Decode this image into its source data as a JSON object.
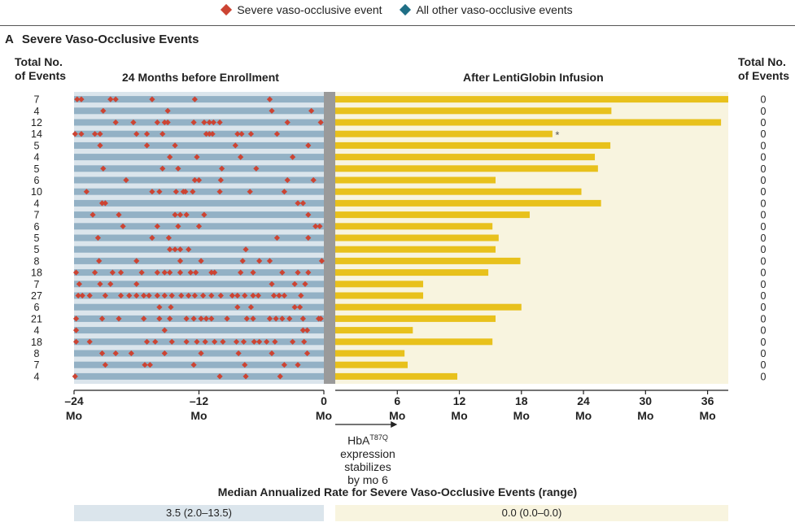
{
  "legend": {
    "severe_label": "Severe vaso-occlusive event",
    "other_label": "All other vaso-occlusive events",
    "severe_color": "#cc4433",
    "other_color": "#1f6f86"
  },
  "panel": {
    "letter": "A",
    "title": "Severe Vaso-Occlusive Events"
  },
  "headers": {
    "left_total_line1": "Total No.",
    "left_total_line2": "of Events",
    "before_label": "24 Months before Enrollment",
    "after_label": "After LentiGlobin Infusion",
    "right_total_line1": "Total No.",
    "right_total_line2": "of Events"
  },
  "colors": {
    "before_row": "#93b1c5",
    "before_bg": "#dbe5ec",
    "after_bar": "#e8c11c",
    "after_bg": "#f8f4df",
    "divider": "#9a9a9a"
  },
  "note": {
    "line1": "HbA",
    "sup": "T87Q",
    "line2": "expression",
    "line3": "stabilizes",
    "line4": "by mo 6"
  },
  "median": {
    "title": "Median Annualized Rate for Severe Vaso-Occlusive Events (range)",
    "before": "3.5 (2.0–13.5)",
    "after": "0.0 (0.0–0.0)"
  },
  "chart_data": {
    "type": "event_timeline",
    "before_axis": {
      "range": [
        -24,
        0
      ],
      "ticks": [
        "–24",
        "–12",
        "0"
      ],
      "tick_values": [
        -24,
        -12,
        0
      ],
      "unit": "Mo"
    },
    "after_axis": {
      "range": [
        0,
        38
      ],
      "ticks": [
        "0",
        "6",
        "12",
        "18",
        "24",
        "30",
        "36"
      ],
      "tick_values": [
        0,
        6,
        12,
        18,
        24,
        30,
        36
      ],
      "unit": "Mo"
    },
    "star_label": "*",
    "patients": [
      {
        "before_total": "7",
        "after_total": "0",
        "followup_months": 38.0,
        "events": [
          -23.7,
          -23.3,
          -20.5,
          -20.0,
          -16.5,
          -12.4,
          -5.2
        ]
      },
      {
        "before_total": "4",
        "after_total": "0",
        "followup_months": 26.7,
        "events": [
          -21.2,
          -15.0,
          -5.0,
          -1.2
        ]
      },
      {
        "before_total": "12",
        "after_total": "0",
        "followup_months": 37.3,
        "events": [
          -20.0,
          -18.3,
          -16.0,
          -15.3,
          -15.0,
          -12.5,
          -11.5,
          -11.0,
          -10.6,
          -10.0,
          -3.5,
          -0.3
        ]
      },
      {
        "before_total": "14",
        "after_total": "0",
        "followup_months": 21.0,
        "star": true,
        "events": [
          -23.9,
          -23.3,
          -22.0,
          -21.5,
          -18.0,
          -17.0,
          -15.5,
          -11.3,
          -11.0,
          -10.7,
          -8.3,
          -7.9,
          -7.0,
          -4.5
        ]
      },
      {
        "before_total": "5",
        "after_total": "0",
        "followup_months": 26.6,
        "events": [
          -21.5,
          -17.0,
          -14.3,
          -8.5,
          -1.5
        ]
      },
      {
        "before_total": "4",
        "after_total": "0",
        "followup_months": 25.1,
        "events": [
          -14.8,
          -12.2,
          -8.0,
          -3.0
        ]
      },
      {
        "before_total": "5",
        "after_total": "0",
        "followup_months": 25.4,
        "events": [
          -21.2,
          -15.5,
          -14.0,
          -9.8,
          -6.5
        ]
      },
      {
        "before_total": "6",
        "after_total": "0",
        "followup_months": 15.5,
        "events": [
          -19.0,
          -12.4,
          -12.0,
          -9.9,
          -3.5,
          -1.0
        ]
      },
      {
        "before_total": "10",
        "after_total": "0",
        "followup_months": 23.8,
        "events": [
          -22.8,
          -16.5,
          -15.8,
          -14.2,
          -13.5,
          -13.3,
          -12.6,
          -10.0,
          -7.1,
          -3.8
        ]
      },
      {
        "before_total": "4",
        "after_total": "0",
        "followup_months": 25.7,
        "events": [
          -21.3,
          -21.0,
          -2.5,
          -2.0
        ]
      },
      {
        "before_total": "7",
        "after_total": "0",
        "followup_months": 18.8,
        "events": [
          -22.2,
          -19.7,
          -14.3,
          -13.8,
          -13.2,
          -11.5,
          -1.5
        ]
      },
      {
        "before_total": "6",
        "after_total": "0",
        "followup_months": 15.2,
        "events": [
          -19.3,
          -16.0,
          -14.0,
          -12.0,
          -0.8,
          -0.4
        ]
      },
      {
        "before_total": "5",
        "after_total": "0",
        "followup_months": 15.8,
        "events": [
          -21.7,
          -16.5,
          -14.9,
          -4.5,
          -1.5
        ]
      },
      {
        "before_total": "5",
        "after_total": "0",
        "followup_months": 15.5,
        "events": [
          -14.8,
          -14.3,
          -13.8,
          -13.0,
          -7.5
        ]
      },
      {
        "before_total": "8",
        "after_total": "0",
        "followup_months": 17.9,
        "events": [
          -21.6,
          -18.0,
          -13.8,
          -11.8,
          -7.8,
          -6.2,
          -5.2,
          -0.2
        ]
      },
      {
        "before_total": "18",
        "after_total": "0",
        "followup_months": 14.8,
        "events": [
          -23.8,
          -22.0,
          -20.3,
          -19.5,
          -17.5,
          -16.0,
          -15.3,
          -14.8,
          -13.8,
          -12.8,
          -12.3,
          -10.8,
          -10.5,
          -8.0,
          -6.8,
          -4.0,
          -2.5,
          -1.5
        ]
      },
      {
        "before_total": "7",
        "after_total": "0",
        "followup_months": 8.5,
        "events": [
          -23.5,
          -21.5,
          -20.5,
          -18.0,
          -5.0,
          -2.8,
          -1.8
        ]
      },
      {
        "before_total": "27",
        "after_total": "0",
        "followup_months": 8.5,
        "events": [
          -23.6,
          -23.2,
          -22.5,
          -21.0,
          -19.5,
          -18.7,
          -18.0,
          -17.3,
          -16.8,
          -16.0,
          -15.3,
          -14.6,
          -13.7,
          -13.0,
          -12.4,
          -11.6,
          -10.8,
          -9.9,
          -8.8,
          -8.3,
          -7.6,
          -6.8,
          -6.3,
          -4.8,
          -4.3,
          -3.8,
          -2.2
        ]
      },
      {
        "before_total": "6",
        "after_total": "0",
        "followup_months": 18.0,
        "events": [
          -15.8,
          -14.7,
          -8.3,
          -7.0,
          -2.8,
          -2.3
        ]
      },
      {
        "before_total": "21",
        "after_total": "0",
        "followup_months": 15.5,
        "events": [
          -23.8,
          -21.3,
          -19.7,
          -17.3,
          -15.8,
          -14.8,
          -13.2,
          -12.5,
          -11.8,
          -11.3,
          -10.8,
          -9.3,
          -7.4,
          -6.8,
          -5.2,
          -4.6,
          -4.0,
          -3.3,
          -2.0,
          -0.5,
          -0.3
        ]
      },
      {
        "before_total": "4",
        "after_total": "0",
        "followup_months": 7.5,
        "events": [
          -23.8,
          -15.3,
          -2.0,
          -1.6
        ]
      },
      {
        "before_total": "18",
        "after_total": "0",
        "followup_months": 15.2,
        "events": [
          -23.8,
          -22.5,
          -17.0,
          -16.2,
          -14.6,
          -13.2,
          -12.2,
          -11.4,
          -10.5,
          -9.7,
          -8.4,
          -7.7,
          -6.7,
          -6.2,
          -5.5,
          -4.7,
          -3.0,
          -1.9
        ]
      },
      {
        "before_total": "8",
        "after_total": "0",
        "followup_months": 6.7,
        "events": [
          -21.3,
          -20.0,
          -18.5,
          -15.3,
          -11.8,
          -8.2,
          -5.0,
          -1.6
        ]
      },
      {
        "before_total": "7",
        "after_total": "0",
        "followup_months": 7.0,
        "events": [
          -21.0,
          -17.2,
          -16.7,
          -12.5,
          -7.6,
          -3.8,
          -2.5
        ]
      },
      {
        "before_total": "4",
        "after_total": "0",
        "followup_months": 11.8,
        "events": [
          -23.9,
          -10.0,
          -7.5,
          -4.2
        ]
      }
    ]
  }
}
